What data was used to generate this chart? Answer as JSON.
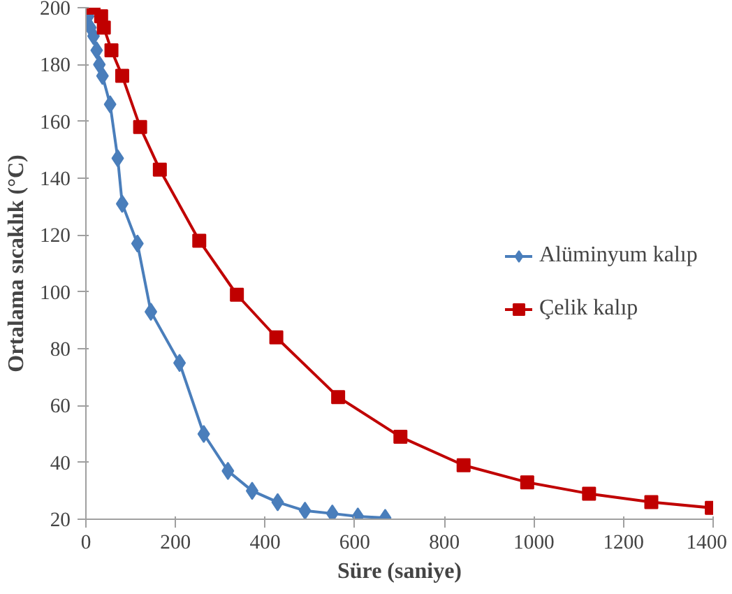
{
  "chart_data": {
    "type": "line",
    "xlabel": "Süre (saniye)",
    "ylabel": "Ortalama sıcaklık (°C)",
    "xlim": [
      0,
      1400
    ],
    "xticks": [
      0,
      200,
      400,
      600,
      800,
      1000,
      1200,
      1400
    ],
    "ylim": [
      20,
      200
    ],
    "yticks": [
      20,
      40,
      60,
      80,
      100,
      120,
      140,
      160,
      180,
      200
    ],
    "grid": false,
    "legend": "right",
    "series": [
      {
        "name": "Alüminyum kalıp",
        "color": "#4a7ebb",
        "marker": "diamond",
        "x": [
          0,
          5,
          10,
          17,
          24,
          30,
          37,
          54,
          71,
          81,
          115,
          145,
          209,
          263,
          317,
          371,
          428,
          489,
          550,
          607,
          668
        ],
        "values": [
          200,
          197,
          193,
          190,
          185,
          180,
          176,
          166,
          147,
          131,
          117,
          93,
          75,
          50,
          37,
          30,
          26,
          23,
          22,
          21,
          20.5
        ]
      },
      {
        "name": "Çelik kalıp",
        "color": "#c00000",
        "marker": "square",
        "x": [
          0,
          17,
          34,
          40,
          57,
          81,
          121,
          165,
          253,
          337,
          425,
          563,
          702,
          843,
          985,
          1123,
          1262,
          1397
        ],
        "values": [
          200,
          200,
          197,
          193,
          185,
          176,
          158,
          143,
          118,
          99,
          84,
          63,
          49,
          39,
          33,
          29,
          26,
          24
        ]
      }
    ]
  }
}
